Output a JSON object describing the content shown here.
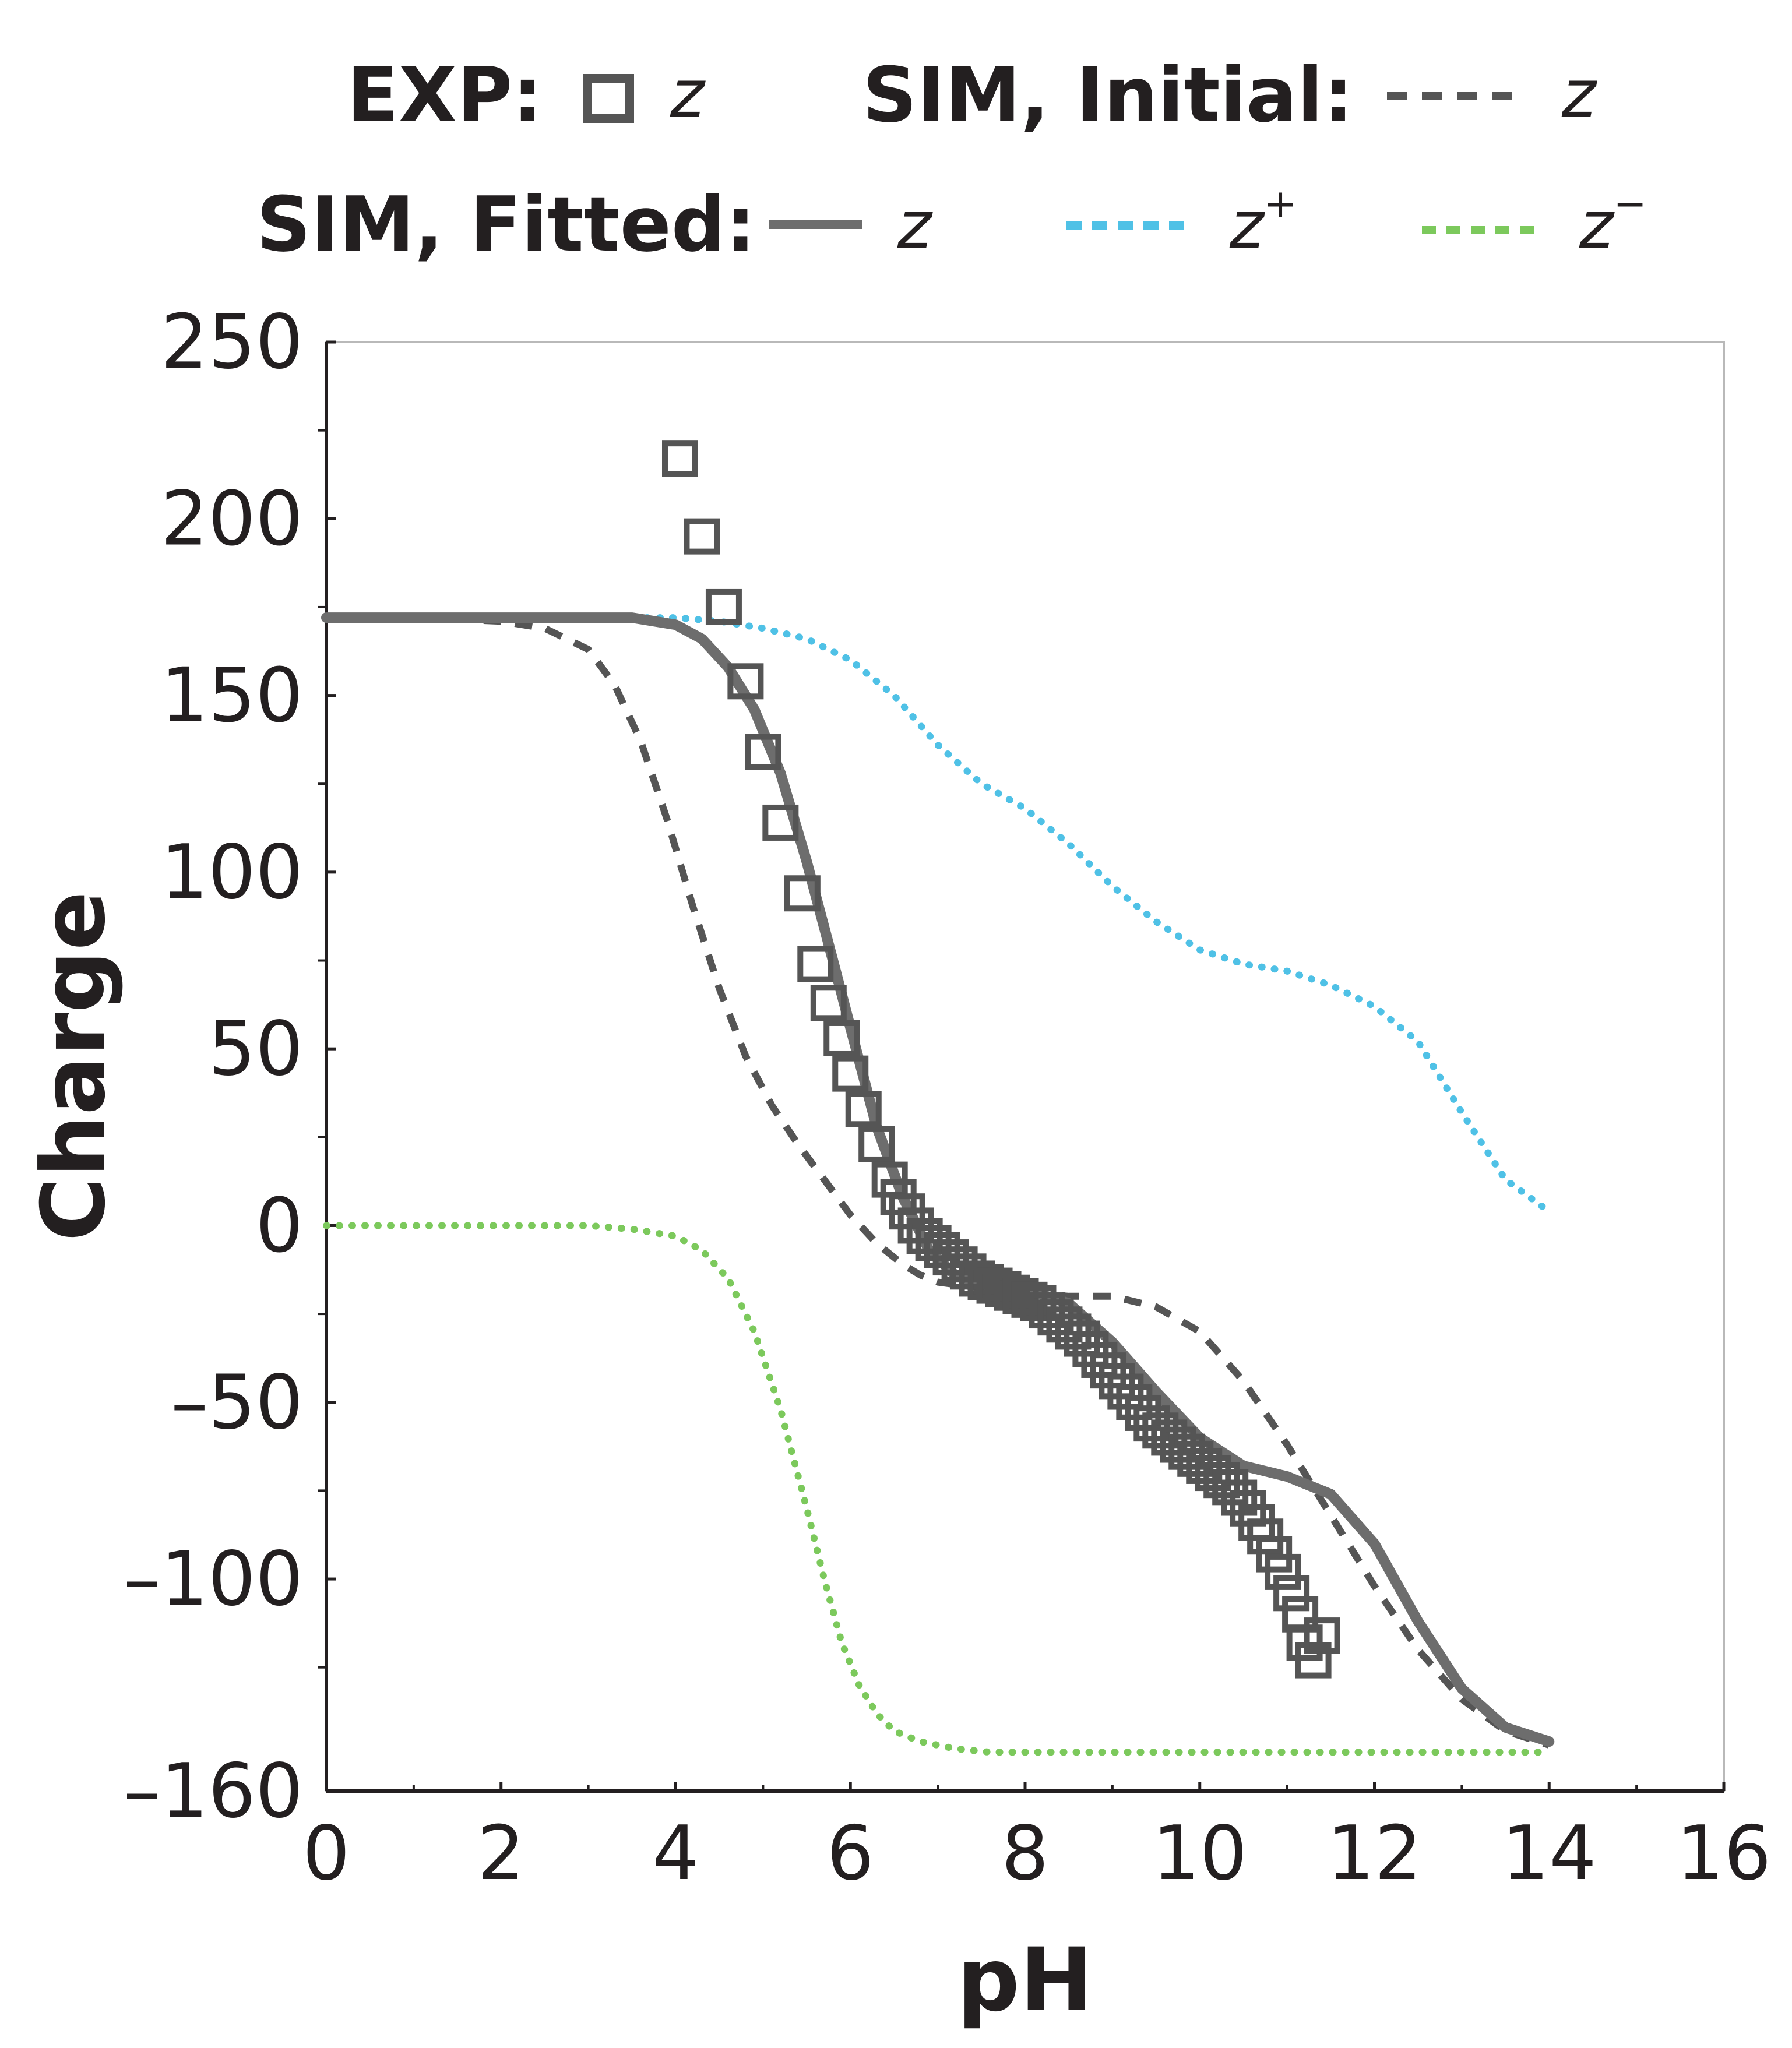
{
  "legend": {
    "exp_label": "EXP:",
    "exp_z": "z",
    "initial_label": "SIM, Initial:",
    "initial_z": "z",
    "fitted_label": "SIM, Fitted:",
    "fitted_z": "z",
    "fitted_zplus": "z",
    "fitted_zplus_sup": "+",
    "fitted_zminus": "z",
    "fitted_zminus_sup": "−"
  },
  "chart_data": {
    "type": "scatter",
    "xlabel": "pH",
    "ylabel": "Charge",
    "xlim": [
      0,
      16
    ],
    "ylim": [
      -160,
      250
    ],
    "xticks": [
      "0",
      "2",
      "4",
      "6",
      "8",
      "10",
      "12",
      "14",
      "16"
    ],
    "yticks": [
      "250",
      "200",
      "150",
      "100",
      "50",
      "0",
      "–50",
      "–100",
      "–160"
    ],
    "ytick_values": [
      250,
      200,
      150,
      100,
      50,
      0,
      -50,
      -100,
      -160
    ],
    "grid": false,
    "legend_position": "top",
    "colors": {
      "exp": "#555555",
      "initial": "#555555",
      "fitted": "#6d6d6d",
      "zplus": "#4fc1e6",
      "zminus": "#7cc95c",
      "axis": "#231f20"
    },
    "series": [
      {
        "name": "EXP: z",
        "style": "markers-square",
        "x": [
          4.05,
          4.3,
          4.55,
          4.8,
          5.0,
          5.2,
          5.45,
          5.6,
          5.75,
          5.9,
          6.0,
          6.15,
          6.3,
          6.45,
          6.55,
          6.65,
          6.75,
          6.85,
          6.95,
          7.05,
          7.15,
          7.25,
          7.35,
          7.45,
          7.55,
          7.65,
          7.75,
          7.85,
          7.95,
          8.05,
          8.15,
          8.25,
          8.35,
          8.45,
          8.55,
          8.65,
          8.75,
          8.85,
          8.95,
          9.05,
          9.15,
          9.25,
          9.35,
          9.45,
          9.55,
          9.65,
          9.75,
          9.85,
          9.95,
          10.05,
          10.15,
          10.25,
          10.35,
          10.45,
          10.55,
          10.65,
          10.75,
          10.85,
          10.95,
          11.05,
          11.15,
          11.2,
          11.3,
          11.4
        ],
        "y": [
          217,
          195,
          175,
          154,
          134,
          114,
          94,
          74,
          63,
          53,
          43,
          33,
          23,
          13,
          8,
          4,
          0,
          -3,
          -5,
          -7,
          -9,
          -11,
          -13,
          -15,
          -16,
          -17,
          -18,
          -19,
          -20,
          -21,
          -22,
          -24,
          -26,
          -28,
          -30,
          -32,
          -35,
          -38,
          -41,
          -44,
          -47,
          -50,
          -53,
          -56,
          -58,
          -60,
          -62,
          -64,
          -66,
          -68,
          -70,
          -72,
          -74,
          -77,
          -80,
          -84,
          -88,
          -93,
          -98,
          -104,
          -110,
          -118,
          -123,
          -116
        ]
      },
      {
        "name": "SIM, Initial: z",
        "style": "dashed",
        "x": [
          0,
          1,
          2,
          2.5,
          3,
          3.3,
          3.6,
          3.9,
          4.2,
          4.5,
          4.8,
          5.1,
          5.4,
          5.7,
          6.0,
          6.3,
          6.6,
          6.8,
          7.0,
          7.3,
          7.6,
          8.0,
          8.5,
          9.0,
          9.5,
          10.0,
          10.5,
          11.0,
          11.5,
          12.0,
          12.5,
          13.0,
          13.5,
          14.0
        ],
        "y": [
          172,
          172,
          171,
          169,
          163,
          153,
          137,
          115,
          90,
          67,
          48,
          34,
          23,
          13,
          3,
          -5,
          -11,
          -14,
          -16,
          -17,
          -18,
          -19,
          -20,
          -20,
          -23,
          -30,
          -44,
          -62,
          -82,
          -102,
          -120,
          -134,
          -143,
          -147
        ]
      },
      {
        "name": "SIM, Fitted: z",
        "style": "solid",
        "x": [
          0,
          1,
          2,
          3,
          3.5,
          4.0,
          4.3,
          4.6,
          4.9,
          5.2,
          5.5,
          5.8,
          6.0,
          6.3,
          6.6,
          6.9,
          7.2,
          7.6,
          8.0,
          8.5,
          9.0,
          9.5,
          10.0,
          10.5,
          11.0,
          11.5,
          12.0,
          12.5,
          13.0,
          13.5,
          14.0
        ],
        "y": [
          172,
          172,
          172,
          172,
          172,
          170,
          166,
          158,
          146,
          128,
          103,
          75,
          56,
          28,
          8,
          -7,
          -14,
          -17,
          -18,
          -22,
          -33,
          -47,
          -60,
          -68,
          -71,
          -76,
          -90,
          -112,
          -131,
          -142,
          -146
        ]
      },
      {
        "name": "SIM, Fitted: z+",
        "style": "dotted",
        "x": [
          0,
          1,
          2,
          3,
          4,
          4.5,
          5.0,
          5.5,
          6.0,
          6.5,
          7.0,
          7.5,
          8.0,
          8.5,
          9.0,
          9.5,
          10.0,
          10.5,
          11.0,
          11.5,
          12.0,
          12.5,
          13.0,
          13.5,
          14.0
        ],
        "y": [
          172,
          172,
          172,
          172,
          172,
          171,
          169,
          166,
          160,
          150,
          136,
          125,
          118,
          108,
          96,
          86,
          78,
          74,
          72,
          68,
          62,
          52,
          32,
          13,
          4
        ]
      },
      {
        "name": "SIM, Fitted: z−",
        "style": "dotted",
        "x": [
          0,
          1,
          2,
          3,
          3.5,
          4.0,
          4.3,
          4.6,
          4.9,
          5.2,
          5.5,
          5.7,
          5.9,
          6.1,
          6.3,
          6.5,
          6.8,
          7.2,
          7.6,
          8.0,
          9.0,
          10.0,
          11.0,
          12.0,
          13.0,
          14.0
        ],
        "y": [
          0,
          0,
          0,
          0,
          -1,
          -3,
          -7,
          -15,
          -30,
          -52,
          -80,
          -100,
          -118,
          -130,
          -138,
          -143,
          -146,
          -148,
          -149,
          -149,
          -149,
          -149,
          -149,
          -149,
          -149,
          -149
        ]
      }
    ]
  }
}
